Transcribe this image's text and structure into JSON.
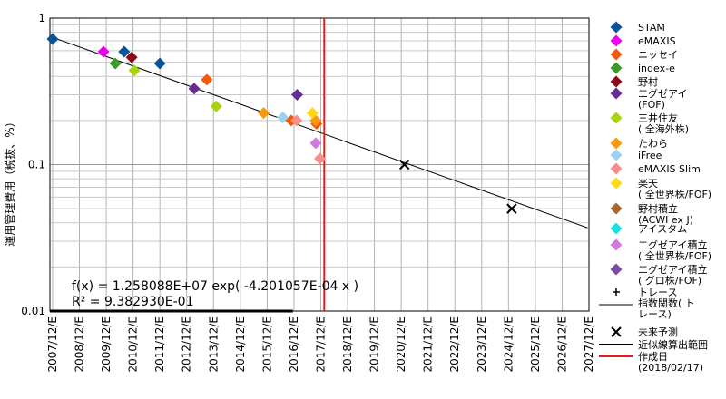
{
  "chart_data": {
    "type": "scatter",
    "title": "",
    "xlabel": "",
    "ylabel": "運用管理費用（税抜、%）",
    "yscale": "log",
    "ylim": [
      0.01,
      1
    ],
    "y_ticks": [
      "0.01",
      "0.1",
      "1"
    ],
    "x_categories": [
      "2007/12/E",
      "2008/12/E",
      "2009/12/E",
      "2010/12/E",
      "2011/12/E",
      "2012/12/E",
      "2013/12/E",
      "2014/12/E",
      "2015/12/E",
      "2016/12/E",
      "2017/12/E",
      "2018/12/E",
      "2019/12/E",
      "2020/12/E",
      "2021/12/E",
      "2022/12/E",
      "2023/12/E",
      "2024/12/E",
      "2025/12/E",
      "2026/12/E",
      "2027/12/E"
    ],
    "grid": true,
    "legend_position": "right",
    "series": [
      {
        "name": "STAM",
        "color": "#0b5394",
        "marker": "diamond",
        "points": [
          [
            2008.0,
            0.72
          ],
          [
            2010.67,
            0.59
          ],
          [
            2012.0,
            0.49
          ]
        ]
      },
      {
        "name": "eMAXIS",
        "color": "#ee00ee",
        "marker": "diamond",
        "points": [
          [
            2009.9,
            0.59
          ]
        ]
      },
      {
        "name": "ニッセイ",
        "color": "#f05a0a",
        "marker": "diamond",
        "points": [
          [
            2013.75,
            0.38
          ],
          [
            2016.9,
            0.2
          ],
          [
            2017.84,
            0.19
          ]
        ]
      },
      {
        "name": "index-e",
        "color": "#3c9a2a",
        "marker": "diamond",
        "points": [
          [
            2010.34,
            0.49
          ]
        ]
      },
      {
        "name": "野村",
        "color": "#8b0a1a",
        "marker": "diamond",
        "points": [
          [
            2010.95,
            0.54
          ]
        ]
      },
      {
        "name": "エグゼアイ\n(FOF)",
        "color": "#662d91",
        "marker": "diamond",
        "points": [
          [
            2013.28,
            0.33
          ],
          [
            2017.12,
            0.3
          ]
        ]
      },
      {
        "name": "三井住友\n( 全海外株)",
        "color": "#a8d40c",
        "marker": "diamond",
        "points": [
          [
            2011.05,
            0.44
          ],
          [
            2014.1,
            0.25
          ]
        ]
      },
      {
        "name": "たわら",
        "color": "#f59a10",
        "marker": "diamond",
        "points": [
          [
            2015.87,
            0.225
          ],
          [
            2017.81,
            0.2
          ]
        ]
      },
      {
        "name": "iFree",
        "color": "#9cd2ee",
        "marker": "diamond",
        "points": [
          [
            2016.58,
            0.21
          ]
        ]
      },
      {
        "name": "eMAXIS Slim",
        "color": "#f49088",
        "marker": "diamond",
        "points": [
          [
            2017.1,
            0.2
          ],
          [
            2017.97,
            0.11
          ]
        ]
      },
      {
        "name": "楽天\n( 全世界株/FOF)",
        "color": "#ffd91a",
        "marker": "diamond",
        "points": [
          [
            2017.69,
            0.225
          ]
        ]
      },
      {
        "name": "野村積立\n(ACWI ex J)",
        "color": "#a6672a",
        "marker": "diamond",
        "points": []
      },
      {
        "name": "アイスタム",
        "color": "#19e0e0",
        "marker": "diamond",
        "points": []
      },
      {
        "name": "エグゼアイ積立\n( 全世界株/FOF)",
        "color": "#d27adc",
        "marker": "diamond",
        "points": [
          [
            2017.81,
            0.14
          ]
        ]
      },
      {
        "name": "エグゼアイ積立\n( グロ株/FOF)",
        "color": "#7a4aa0",
        "marker": "diamond",
        "points": []
      },
      {
        "name": "トレース\n指数関数( ト\nレース)",
        "color": "#000000",
        "marker": "plus",
        "points": []
      },
      {
        "name": "未来予測",
        "color": "#000000",
        "marker": "x",
        "points": [
          [
            2021.12,
            0.1
          ],
          [
            2025.12,
            0.05
          ]
        ]
      },
      {
        "name": "近似線算出範囲",
        "color": "#000000",
        "marker": "line",
        "points": []
      },
      {
        "name": "作成日\n(2018/02/17)",
        "color": "#e41a1c",
        "marker": "line",
        "points": []
      }
    ],
    "trendline": {
      "equation": "f(x) = 1.258088E+07 exp( -4.201057E-04 x )",
      "r_squared": "R² = 9.382930E-01",
      "from": [
        2007.9,
        0.75
      ],
      "to": [
        2027.95,
        0.037
      ]
    },
    "fit_range": {
      "from": 2007.9,
      "to": 2016.96
    },
    "creation_date_x": 2018.13
  }
}
